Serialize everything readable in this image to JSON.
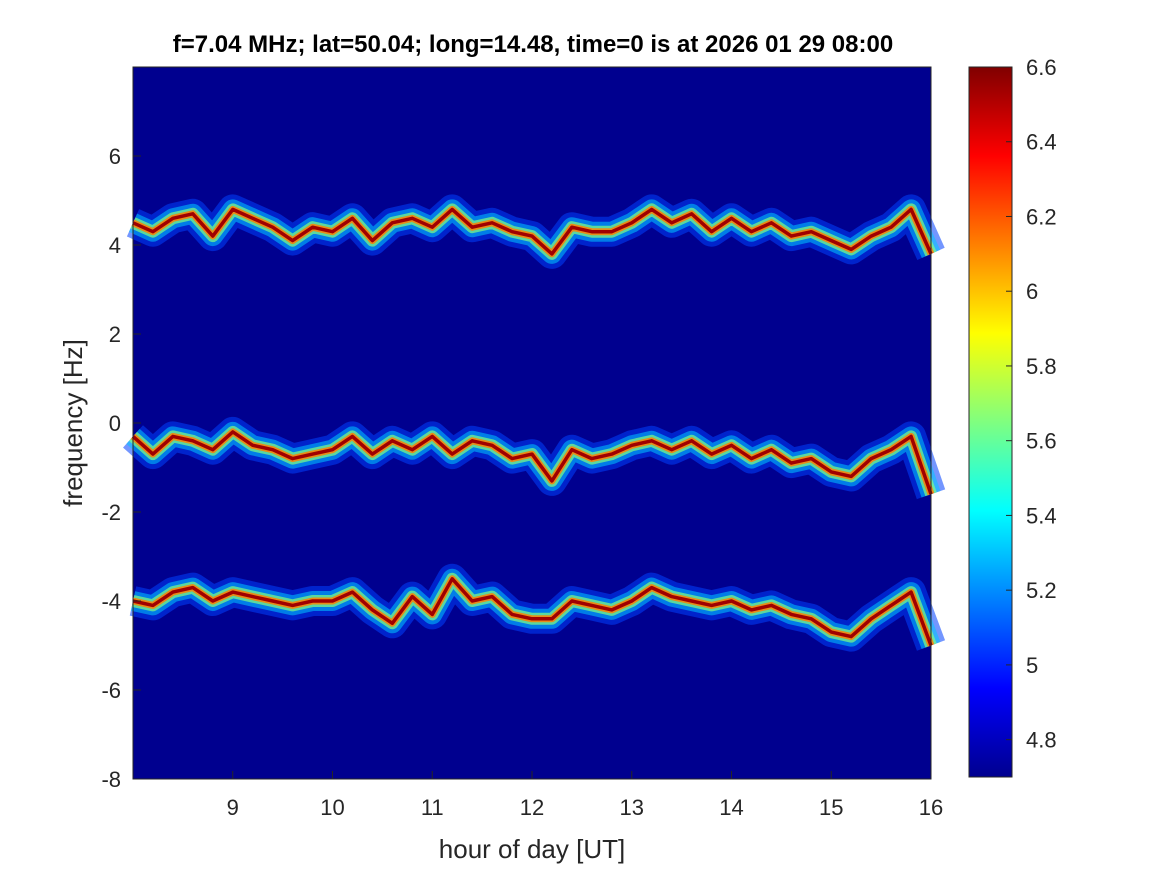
{
  "chart_data": {
    "type": "heatmap",
    "title": "f=7.04 MHz;  lat=50.04; long=14.48, time=0 is at 2026 01 29 08:00",
    "xlabel": "hour of day [UT]",
    "ylabel": "frequency [Hz]",
    "xlim": [
      8,
      16
    ],
    "ylim": [
      -8,
      8
    ],
    "xticks": [
      "9",
      "10",
      "11",
      "12",
      "13",
      "14",
      "15",
      "16"
    ],
    "yticks": [
      "-8",
      "-6",
      "-4",
      "-2",
      "0",
      "2",
      "4",
      "6"
    ],
    "colorbar": {
      "colormap": "jet",
      "limits": [
        4.7,
        6.6
      ],
      "ticks": [
        "4.8",
        "5",
        "5.2",
        "5.4",
        "5.6",
        "5.8",
        "6",
        "6.2",
        "6.4",
        "6.6"
      ]
    },
    "grid": false,
    "background_level": 4.7,
    "series": [
      {
        "name": "",
        "center_hz": 4.4,
        "values": [
          [
            8.0,
            4.5
          ],
          [
            8.2,
            4.3
          ],
          [
            8.4,
            4.6
          ],
          [
            8.6,
            4.7
          ],
          [
            8.8,
            4.2
          ],
          [
            9.0,
            4.8
          ],
          [
            9.2,
            4.6
          ],
          [
            9.4,
            4.4
          ],
          [
            9.6,
            4.1
          ],
          [
            9.8,
            4.4
          ],
          [
            10.0,
            4.3
          ],
          [
            10.2,
            4.6
          ],
          [
            10.4,
            4.1
          ],
          [
            10.6,
            4.5
          ],
          [
            10.8,
            4.6
          ],
          [
            11.0,
            4.4
          ],
          [
            11.2,
            4.8
          ],
          [
            11.4,
            4.4
          ],
          [
            11.6,
            4.5
          ],
          [
            11.8,
            4.3
          ],
          [
            12.0,
            4.2
          ],
          [
            12.2,
            3.8
          ],
          [
            12.4,
            4.4
          ],
          [
            12.6,
            4.3
          ],
          [
            12.8,
            4.3
          ],
          [
            13.0,
            4.5
          ],
          [
            13.2,
            4.8
          ],
          [
            13.4,
            4.5
          ],
          [
            13.6,
            4.7
          ],
          [
            13.8,
            4.3
          ],
          [
            14.0,
            4.6
          ],
          [
            14.2,
            4.3
          ],
          [
            14.4,
            4.5
          ],
          [
            14.6,
            4.2
          ],
          [
            14.8,
            4.3
          ],
          [
            15.0,
            4.1
          ],
          [
            15.2,
            3.9
          ],
          [
            15.4,
            4.2
          ],
          [
            15.6,
            4.4
          ],
          [
            15.8,
            4.8
          ],
          [
            16.0,
            3.8
          ]
        ]
      },
      {
        "name": "",
        "center_hz": -0.5,
        "values": [
          [
            8.0,
            -0.3
          ],
          [
            8.2,
            -0.7
          ],
          [
            8.4,
            -0.3
          ],
          [
            8.6,
            -0.4
          ],
          [
            8.8,
            -0.6
          ],
          [
            9.0,
            -0.2
          ],
          [
            9.2,
            -0.5
          ],
          [
            9.4,
            -0.6
          ],
          [
            9.6,
            -0.8
          ],
          [
            9.8,
            -0.7
          ],
          [
            10.0,
            -0.6
          ],
          [
            10.2,
            -0.3
          ],
          [
            10.4,
            -0.7
          ],
          [
            10.6,
            -0.4
          ],
          [
            10.8,
            -0.6
          ],
          [
            11.0,
            -0.3
          ],
          [
            11.2,
            -0.7
          ],
          [
            11.4,
            -0.4
          ],
          [
            11.6,
            -0.5
          ],
          [
            11.8,
            -0.8
          ],
          [
            12.0,
            -0.7
          ],
          [
            12.2,
            -1.3
          ],
          [
            12.4,
            -0.6
          ],
          [
            12.6,
            -0.8
          ],
          [
            12.8,
            -0.7
          ],
          [
            13.0,
            -0.5
          ],
          [
            13.2,
            -0.4
          ],
          [
            13.4,
            -0.6
          ],
          [
            13.6,
            -0.4
          ],
          [
            13.8,
            -0.7
          ],
          [
            14.0,
            -0.5
          ],
          [
            14.2,
            -0.8
          ],
          [
            14.4,
            -0.6
          ],
          [
            14.6,
            -0.9
          ],
          [
            14.8,
            -0.8
          ],
          [
            15.0,
            -1.1
          ],
          [
            15.2,
            -1.2
          ],
          [
            15.4,
            -0.8
          ],
          [
            15.6,
            -0.6
          ],
          [
            15.8,
            -0.3
          ],
          [
            16.0,
            -1.6
          ]
        ]
      },
      {
        "name": "",
        "center_hz": -4.0,
        "values": [
          [
            8.0,
            -4.0
          ],
          [
            8.2,
            -4.1
          ],
          [
            8.4,
            -3.8
          ],
          [
            8.6,
            -3.7
          ],
          [
            8.8,
            -4.0
          ],
          [
            9.0,
            -3.8
          ],
          [
            9.2,
            -3.9
          ],
          [
            9.4,
            -4.0
          ],
          [
            9.6,
            -4.1
          ],
          [
            9.8,
            -4.0
          ],
          [
            10.0,
            -4.0
          ],
          [
            10.2,
            -3.8
          ],
          [
            10.4,
            -4.2
          ],
          [
            10.6,
            -4.5
          ],
          [
            10.8,
            -3.9
          ],
          [
            11.0,
            -4.3
          ],
          [
            11.2,
            -3.5
          ],
          [
            11.4,
            -4.0
          ],
          [
            11.6,
            -3.9
          ],
          [
            11.8,
            -4.3
          ],
          [
            12.0,
            -4.4
          ],
          [
            12.2,
            -4.4
          ],
          [
            12.4,
            -4.0
          ],
          [
            12.6,
            -4.1
          ],
          [
            12.8,
            -4.2
          ],
          [
            13.0,
            -4.0
          ],
          [
            13.2,
            -3.7
          ],
          [
            13.4,
            -3.9
          ],
          [
            13.6,
            -4.0
          ],
          [
            13.8,
            -4.1
          ],
          [
            14.0,
            -4.0
          ],
          [
            14.2,
            -4.2
          ],
          [
            14.4,
            -4.1
          ],
          [
            14.6,
            -4.3
          ],
          [
            14.8,
            -4.4
          ],
          [
            15.0,
            -4.7
          ],
          [
            15.2,
            -4.8
          ],
          [
            15.4,
            -4.4
          ],
          [
            15.6,
            -4.1
          ],
          [
            15.8,
            -3.8
          ],
          [
            16.0,
            -5.0
          ]
        ]
      }
    ]
  }
}
